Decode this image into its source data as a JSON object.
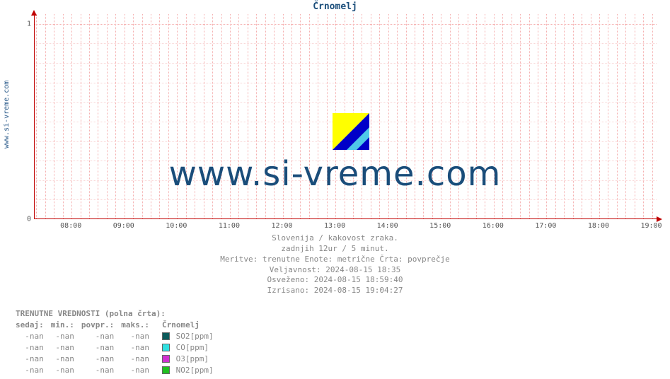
{
  "side_label": "www.si-vreme.com",
  "chart": {
    "title": "Črnomelj",
    "type": "line",
    "xticks": [
      "08:00",
      "09:00",
      "10:00",
      "11:00",
      "12:00",
      "13:00",
      "14:00",
      "15:00",
      "16:00",
      "17:00",
      "18:00",
      "19:00"
    ],
    "yticks": [
      "0",
      "1"
    ],
    "ylim": [
      0,
      1.05
    ],
    "xlim_hours": [
      7.3,
      19.1
    ],
    "grid_color": "#f5b0b0",
    "axis_color": "#c00000",
    "background_color": "#ffffff",
    "series": [],
    "watermark_text": "www.si-vreme.com",
    "watermark_color": "#1a4d7a",
    "logo_colors": {
      "tri_yellow": "#ffff00",
      "tri_blue": "#0000c8",
      "stripe": "#4fc8e8"
    }
  },
  "meta": {
    "line1": "Slovenija / kakovost zraka.",
    "line2": "zadnjih 12ur / 5 minut.",
    "line3": "Meritve: trenutne  Enote: metrične  Črta: povprečje",
    "line4": "Veljavnost: 2024-08-15 18:35",
    "line5": "Osveženo: 2024-08-15 18:59:40",
    "line6": "Izrisano: 2024-08-15 19:04:27"
  },
  "table": {
    "title": "TRENUTNE VREDNOSTI (polna črta):",
    "headers": {
      "now": "sedaj:",
      "min": "min.:",
      "avg": "povpr.:",
      "max": "maks.:",
      "loc": "Črnomelj"
    },
    "rows": [
      {
        "now": "-nan",
        "min": "-nan",
        "avg": "-nan",
        "max": "-nan",
        "swatch": "#0a5a5a",
        "label": "SO2[ppm]"
      },
      {
        "now": "-nan",
        "min": "-nan",
        "avg": "-nan",
        "max": "-nan",
        "swatch": "#30e0e0",
        "label": "CO[ppm]"
      },
      {
        "now": "-nan",
        "min": "-nan",
        "avg": "-nan",
        "max": "-nan",
        "swatch": "#d030d0",
        "label": "O3[ppm]"
      },
      {
        "now": "-nan",
        "min": "-nan",
        "avg": "-nan",
        "max": "-nan",
        "swatch": "#20c020",
        "label": "NO2[ppm]"
      }
    ]
  }
}
